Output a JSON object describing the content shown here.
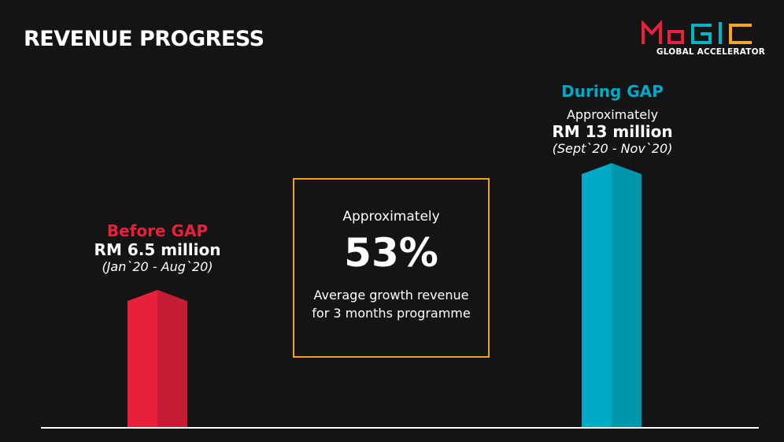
{
  "header": {
    "title": "REVENUE PROGRESS"
  },
  "logo": {
    "wordmark": "MaGIC",
    "subtitle": "GLOBAL ACCELERATOR",
    "colors": [
      "#e8213a",
      "#00b4c8",
      "#f5a623"
    ]
  },
  "colors": {
    "background": "#141414",
    "before": "#e8213a",
    "during": "#00a9c5",
    "box_border": "#f0a21e",
    "baseline": "#ffffff"
  },
  "highlight": {
    "prefix": "Approximately",
    "value": "53%",
    "description_line1": "Average growth revenue",
    "description_line2": "for 3 months programme"
  },
  "chart_data": {
    "type": "bar",
    "categories": [
      "Before GAP",
      "During GAP"
    ],
    "values": [
      6.5,
      13
    ],
    "unit": "RM million",
    "title": "REVENUE PROGRESS",
    "xlabel": "",
    "ylabel": "",
    "ylim": [
      0,
      13
    ],
    "grid": false,
    "bars": [
      {
        "label": "Before GAP",
        "prefix": "",
        "value_text": "RM 6.5 million",
        "period": "(Jan`20 - Aug`20)"
      },
      {
        "label": "During GAP",
        "prefix": "Approximately",
        "value_text": "RM 13 million",
        "period": "(Sept`20 - Nov`20)"
      }
    ]
  }
}
